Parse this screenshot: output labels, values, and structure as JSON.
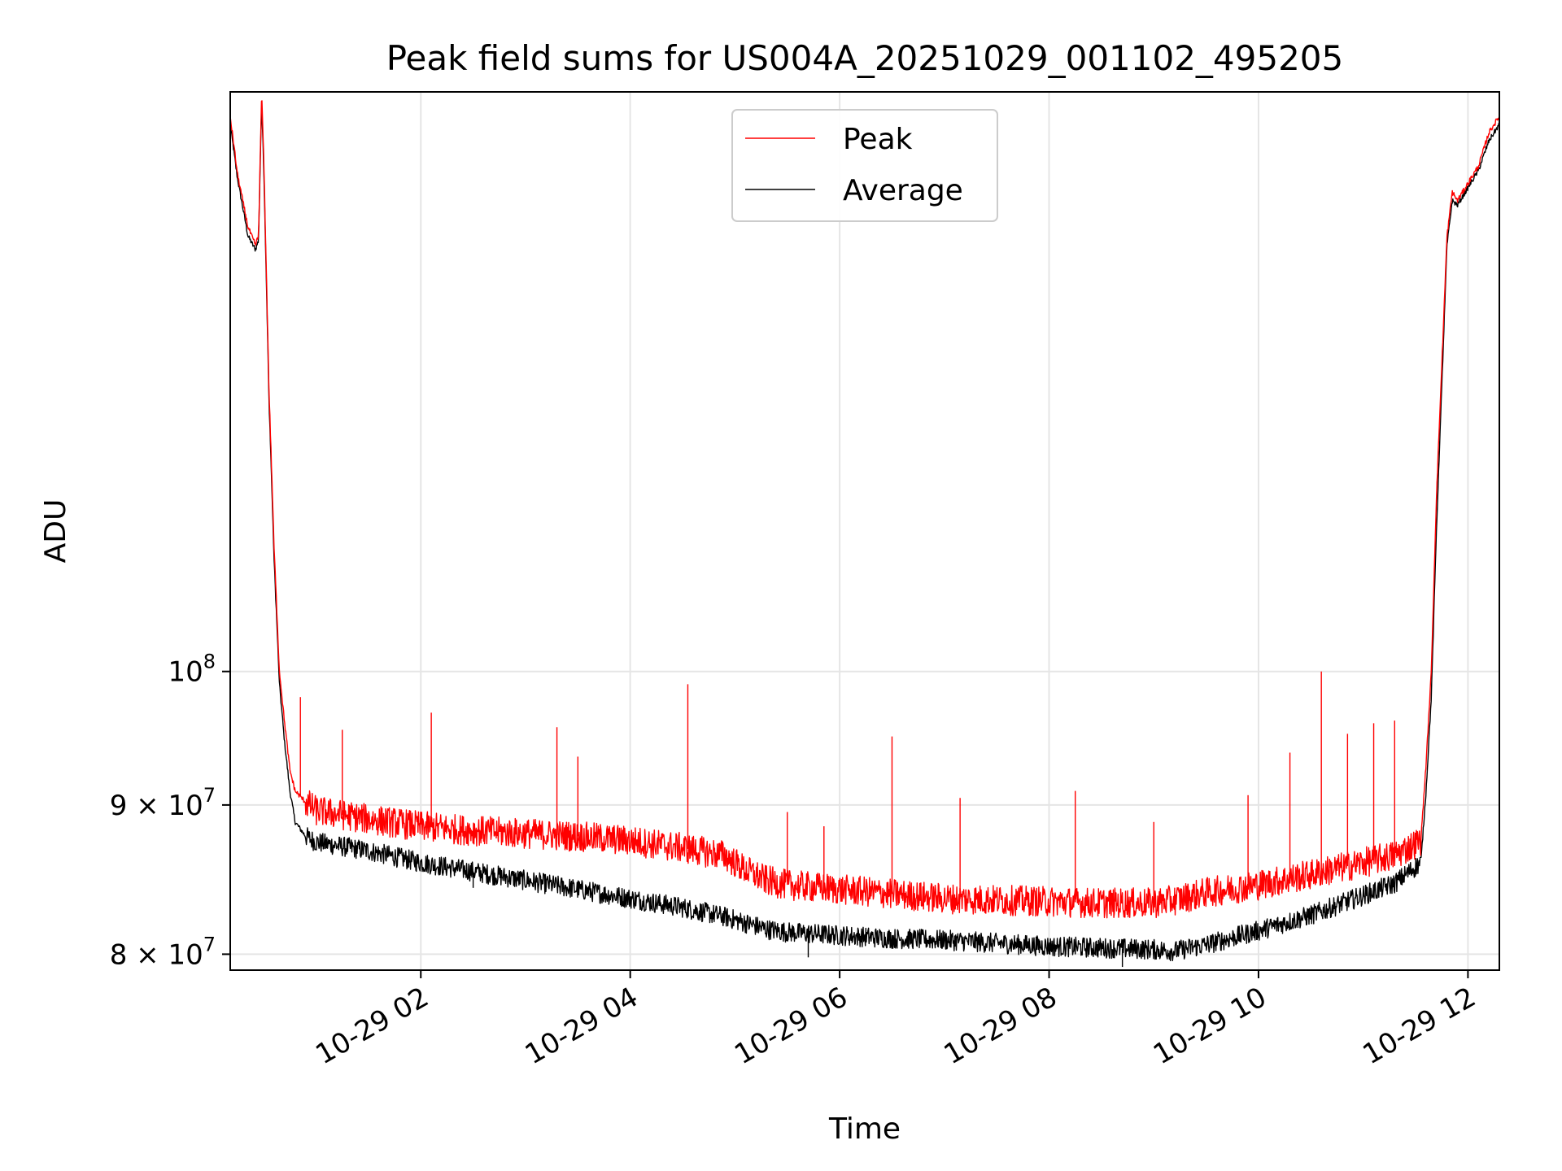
{
  "chart_data": {
    "type": "line",
    "title": "Peak field sums for US004A_20251029_001102_495205",
    "xlabel": "Time",
    "ylabel": "ADU",
    "yscale": "log",
    "ylim": [
      79000000,
      158000000
    ],
    "xlim_hours": [
      0.18,
      12.3
    ],
    "grid": true,
    "legend_position": "upper-center",
    "x_ticks": [
      {
        "hour": 2,
        "label": "10-29 02"
      },
      {
        "hour": 4,
        "label": "10-29 04"
      },
      {
        "hour": 6,
        "label": "10-29 06"
      },
      {
        "hour": 8,
        "label": "10-29 08"
      },
      {
        "hour": 10,
        "label": "10-29 10"
      },
      {
        "hour": 12,
        "label": "10-29 12"
      }
    ],
    "y_ticks": [
      {
        "value": 100000000,
        "mantissa": "10",
        "exponent": "8",
        "label": "10^8"
      },
      {
        "value": 90000000,
        "mantissa": "9 × 10",
        "exponent": "7",
        "label": "9×10^7"
      },
      {
        "value": 80000000,
        "mantissa": "8 × 10",
        "exponent": "7",
        "label": "8×10^7"
      }
    ],
    "series": [
      {
        "name": "Peak",
        "color": "#ff0000",
        "x_hours": [
          0.18,
          0.25,
          0.35,
          0.42,
          0.45,
          0.48,
          0.5,
          0.55,
          0.6,
          0.65,
          0.7,
          0.75,
          0.8,
          0.9,
          1.0,
          1.5,
          2.0,
          2.5,
          3.0,
          3.5,
          4.0,
          4.5,
          4.9,
          5.1,
          5.3,
          5.5,
          6.0,
          6.5,
          7.0,
          7.5,
          8.0,
          8.5,
          9.0,
          9.2,
          9.5,
          10.0,
          10.5,
          11.0,
          11.3,
          11.55,
          11.6,
          11.65,
          11.7,
          11.8,
          11.85,
          11.9,
          12.0,
          12.1,
          12.2,
          12.3
        ],
        "values": [
          155000000,
          148000000,
          142000000,
          140000000,
          141000000,
          158000000,
          150000000,
          125000000,
          110000000,
          100000000,
          96000000,
          92500000,
          91000000,
          90200000,
          89600000,
          89000000,
          88500000,
          88200000,
          88000000,
          87800000,
          87500000,
          87000000,
          86500000,
          85500000,
          84800000,
          84500000,
          84200000,
          83900000,
          83600000,
          83500000,
          83400000,
          83300000,
          83300000,
          83500000,
          84000000,
          84500000,
          85200000,
          86000000,
          86500000,
          87500000,
          93000000,
          100000000,
          115000000,
          141000000,
          146000000,
          145000000,
          147000000,
          149000000,
          153000000,
          155000000
        ]
      },
      {
        "name": "Average",
        "color": "#000000",
        "x_hours": [
          0.18,
          0.25,
          0.35,
          0.42,
          0.45,
          0.48,
          0.5,
          0.55,
          0.6,
          0.65,
          0.7,
          0.75,
          0.8,
          0.9,
          1.0,
          1.5,
          2.0,
          2.5,
          3.0,
          3.5,
          4.0,
          4.5,
          4.9,
          5.1,
          5.3,
          5.5,
          6.0,
          6.5,
          7.0,
          7.5,
          8.0,
          8.5,
          9.0,
          9.2,
          9.5,
          10.0,
          10.5,
          11.0,
          11.3,
          11.55,
          11.6,
          11.65,
          11.7,
          11.8,
          11.85,
          11.9,
          12.0,
          12.1,
          12.2,
          12.3
        ],
        "values": [
          154000000,
          147500000,
          141000000,
          139500000,
          140500000,
          157000000,
          149000000,
          124000000,
          109000000,
          99000000,
          94500000,
          91000000,
          88800000,
          87800000,
          87400000,
          86800000,
          86000000,
          85400000,
          84800000,
          84200000,
          83600000,
          83000000,
          82400000,
          82000000,
          81600000,
          81400000,
          81200000,
          81000000,
          80900000,
          80700000,
          80500000,
          80400000,
          80300000,
          80200000,
          80600000,
          81500000,
          82500000,
          83800000,
          84600000,
          86000000,
          91000000,
          98000000,
          112000000,
          140000000,
          145000000,
          144500000,
          146500000,
          148500000,
          152000000,
          154000000
        ]
      }
    ],
    "spikes": [
      {
        "series": "Peak",
        "hour": 0.85,
        "value": 98000000
      },
      {
        "series": "Peak",
        "hour": 1.25,
        "value": 95500000
      },
      {
        "series": "Peak",
        "hour": 2.1,
        "value": 96800000
      },
      {
        "series": "Peak",
        "hour": 3.3,
        "value": 95700000
      },
      {
        "series": "Peak",
        "hour": 3.5,
        "value": 93500000
      },
      {
        "series": "Peak",
        "hour": 4.55,
        "value": 99000000
      },
      {
        "series": "Peak",
        "hour": 5.5,
        "value": 89500000
      },
      {
        "series": "Peak",
        "hour": 5.85,
        "value": 88500000
      },
      {
        "series": "Peak",
        "hour": 6.5,
        "value": 95000000
      },
      {
        "series": "Peak",
        "hour": 7.15,
        "value": 90500000
      },
      {
        "series": "Peak",
        "hour": 8.25,
        "value": 91000000
      },
      {
        "series": "Peak",
        "hour": 9.0,
        "value": 88800000
      },
      {
        "series": "Peak",
        "hour": 9.9,
        "value": 90700000
      },
      {
        "series": "Peak",
        "hour": 10.3,
        "value": 93800000
      },
      {
        "series": "Peak",
        "hour": 10.6,
        "value": 100000000
      },
      {
        "series": "Peak",
        "hour": 10.85,
        "value": 95200000
      },
      {
        "series": "Peak",
        "hour": 11.1,
        "value": 96000000
      },
      {
        "series": "Peak",
        "hour": 11.3,
        "value": 96200000
      },
      {
        "series": "Average",
        "hour": 2.5,
        "value": 84300000
      },
      {
        "series": "Average",
        "hour": 5.7,
        "value": 79800000
      },
      {
        "series": "Average",
        "hour": 8.7,
        "value": 79200000
      }
    ]
  }
}
